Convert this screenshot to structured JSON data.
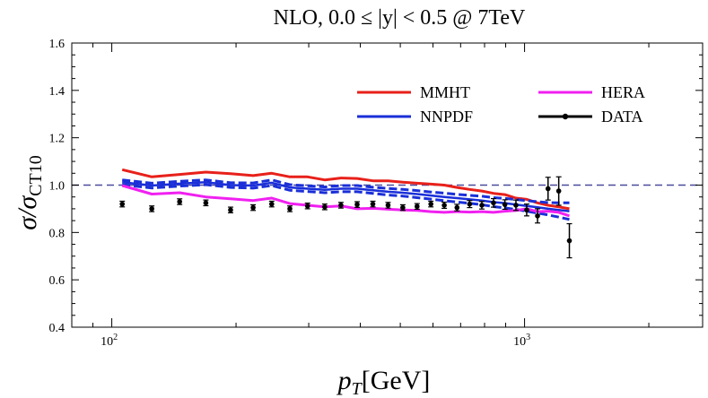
{
  "chart_data": {
    "type": "line",
    "title": "NLO, 0.0 ≤ |y| < 0.5 @ 7TeV",
    "xlabel": {
      "main": "p",
      "sub": "T",
      "unit": "[GeV]"
    },
    "ylabel": {
      "main": "σ/σ",
      "sub": "CT10"
    },
    "xscale": "log",
    "xlim": [
      80,
      2700
    ],
    "ylim": [
      0.4,
      1.6
    ],
    "grid": false,
    "legend_position": "top-right",
    "x_ticks": [
      {
        "value": 100,
        "base": "10",
        "exp": "2"
      },
      {
        "value": 1000,
        "base": "10",
        "exp": "3"
      }
    ],
    "y_ticks": [
      {
        "value": 0.4,
        "label": "0.4"
      },
      {
        "value": 0.6,
        "label": "0.6"
      },
      {
        "value": 0.8,
        "label": "0.8"
      },
      {
        "value": 1.0,
        "label": "1.0"
      },
      {
        "value": 1.2,
        "label": "1.2"
      },
      {
        "value": 1.4,
        "label": "1.4"
      },
      {
        "value": 1.6,
        "label": "1.6"
      }
    ],
    "reference_line": {
      "y": 1.0,
      "color": "#4a4a9e"
    },
    "series": [
      {
        "name": "MMHT",
        "kind": "line",
        "color": "#e8201a",
        "x": [
          106,
          125,
          146,
          169,
          194,
          220,
          244,
          270,
          298,
          328,
          359,
          393,
          429,
          467,
          507,
          549,
          593,
          639,
          686,
          736,
          788,
          841,
          896,
          953,
          1012,
          1075,
          1140,
          1210,
          1284
        ],
        "y": [
          1.065,
          1.035,
          1.045,
          1.055,
          1.048,
          1.04,
          1.05,
          1.035,
          1.035,
          1.022,
          1.03,
          1.028,
          1.018,
          1.018,
          1.012,
          1.008,
          1.004,
          1.0,
          0.99,
          0.982,
          0.975,
          0.965,
          0.96,
          0.945,
          0.94,
          0.925,
          0.915,
          0.908,
          0.9
        ]
      },
      {
        "name": "NNPDF",
        "kind": "band",
        "color": "#1a2fd8",
        "x": [
          106,
          125,
          146,
          169,
          194,
          220,
          244,
          270,
          298,
          328,
          359,
          393,
          429,
          467,
          507,
          549,
          593,
          639,
          686,
          736,
          788,
          841,
          896,
          953,
          1012,
          1075,
          1140,
          1210,
          1284
        ],
        "y": [
          1.012,
          0.998,
          1.006,
          1.012,
          1.0,
          0.998,
          1.01,
          0.99,
          0.985,
          0.98,
          0.985,
          0.985,
          0.978,
          0.972,
          0.968,
          0.962,
          0.956,
          0.95,
          0.945,
          0.94,
          0.935,
          0.928,
          0.924,
          0.918,
          0.912,
          0.906,
          0.9,
          0.895,
          0.89
        ],
        "err": [
          0.01,
          0.01,
          0.01,
          0.01,
          0.01,
          0.011,
          0.012,
          0.012,
          0.012,
          0.012,
          0.013,
          0.013,
          0.013,
          0.014,
          0.014,
          0.015,
          0.015,
          0.016,
          0.016,
          0.017,
          0.018,
          0.019,
          0.02,
          0.021,
          0.022,
          0.024,
          0.026,
          0.03,
          0.035
        ]
      },
      {
        "name": "HERA",
        "kind": "line",
        "color": "#f020f0",
        "x": [
          106,
          125,
          146,
          169,
          194,
          220,
          244,
          270,
          298,
          328,
          359,
          393,
          429,
          467,
          507,
          549,
          593,
          639,
          686,
          736,
          788,
          841,
          896,
          953,
          1012,
          1075,
          1140,
          1210,
          1284
        ],
        "y": [
          0.998,
          0.962,
          0.968,
          0.95,
          0.942,
          0.935,
          0.945,
          0.922,
          0.915,
          0.908,
          0.912,
          0.9,
          0.902,
          0.898,
          0.895,
          0.893,
          0.888,
          0.885,
          0.888,
          0.886,
          0.888,
          0.885,
          0.89,
          0.893,
          0.9,
          0.888,
          0.89,
          0.885,
          0.87
        ]
      },
      {
        "name": "DATA",
        "kind": "points",
        "color": "#000000",
        "x": [
          106,
          125,
          146,
          169,
          194,
          220,
          244,
          270,
          298,
          328,
          359,
          393,
          429,
          467,
          507,
          549,
          593,
          639,
          686,
          736,
          788,
          841,
          896,
          953,
          1012,
          1075,
          1140,
          1210,
          1284
        ],
        "y": [
          0.92,
          0.9,
          0.93,
          0.925,
          0.895,
          0.905,
          0.92,
          0.9,
          0.912,
          0.908,
          0.915,
          0.918,
          0.92,
          0.915,
          0.905,
          0.91,
          0.92,
          0.915,
          0.905,
          0.92,
          0.915,
          0.925,
          0.918,
          0.915,
          0.895,
          0.87,
          0.985,
          0.975,
          0.765
        ],
        "err": [
          0.012,
          0.012,
          0.012,
          0.012,
          0.012,
          0.012,
          0.012,
          0.012,
          0.012,
          0.012,
          0.012,
          0.012,
          0.012,
          0.012,
          0.012,
          0.012,
          0.012,
          0.013,
          0.014,
          0.015,
          0.016,
          0.018,
          0.02,
          0.022,
          0.025,
          0.03,
          0.048,
          0.06,
          0.072
        ]
      }
    ]
  }
}
